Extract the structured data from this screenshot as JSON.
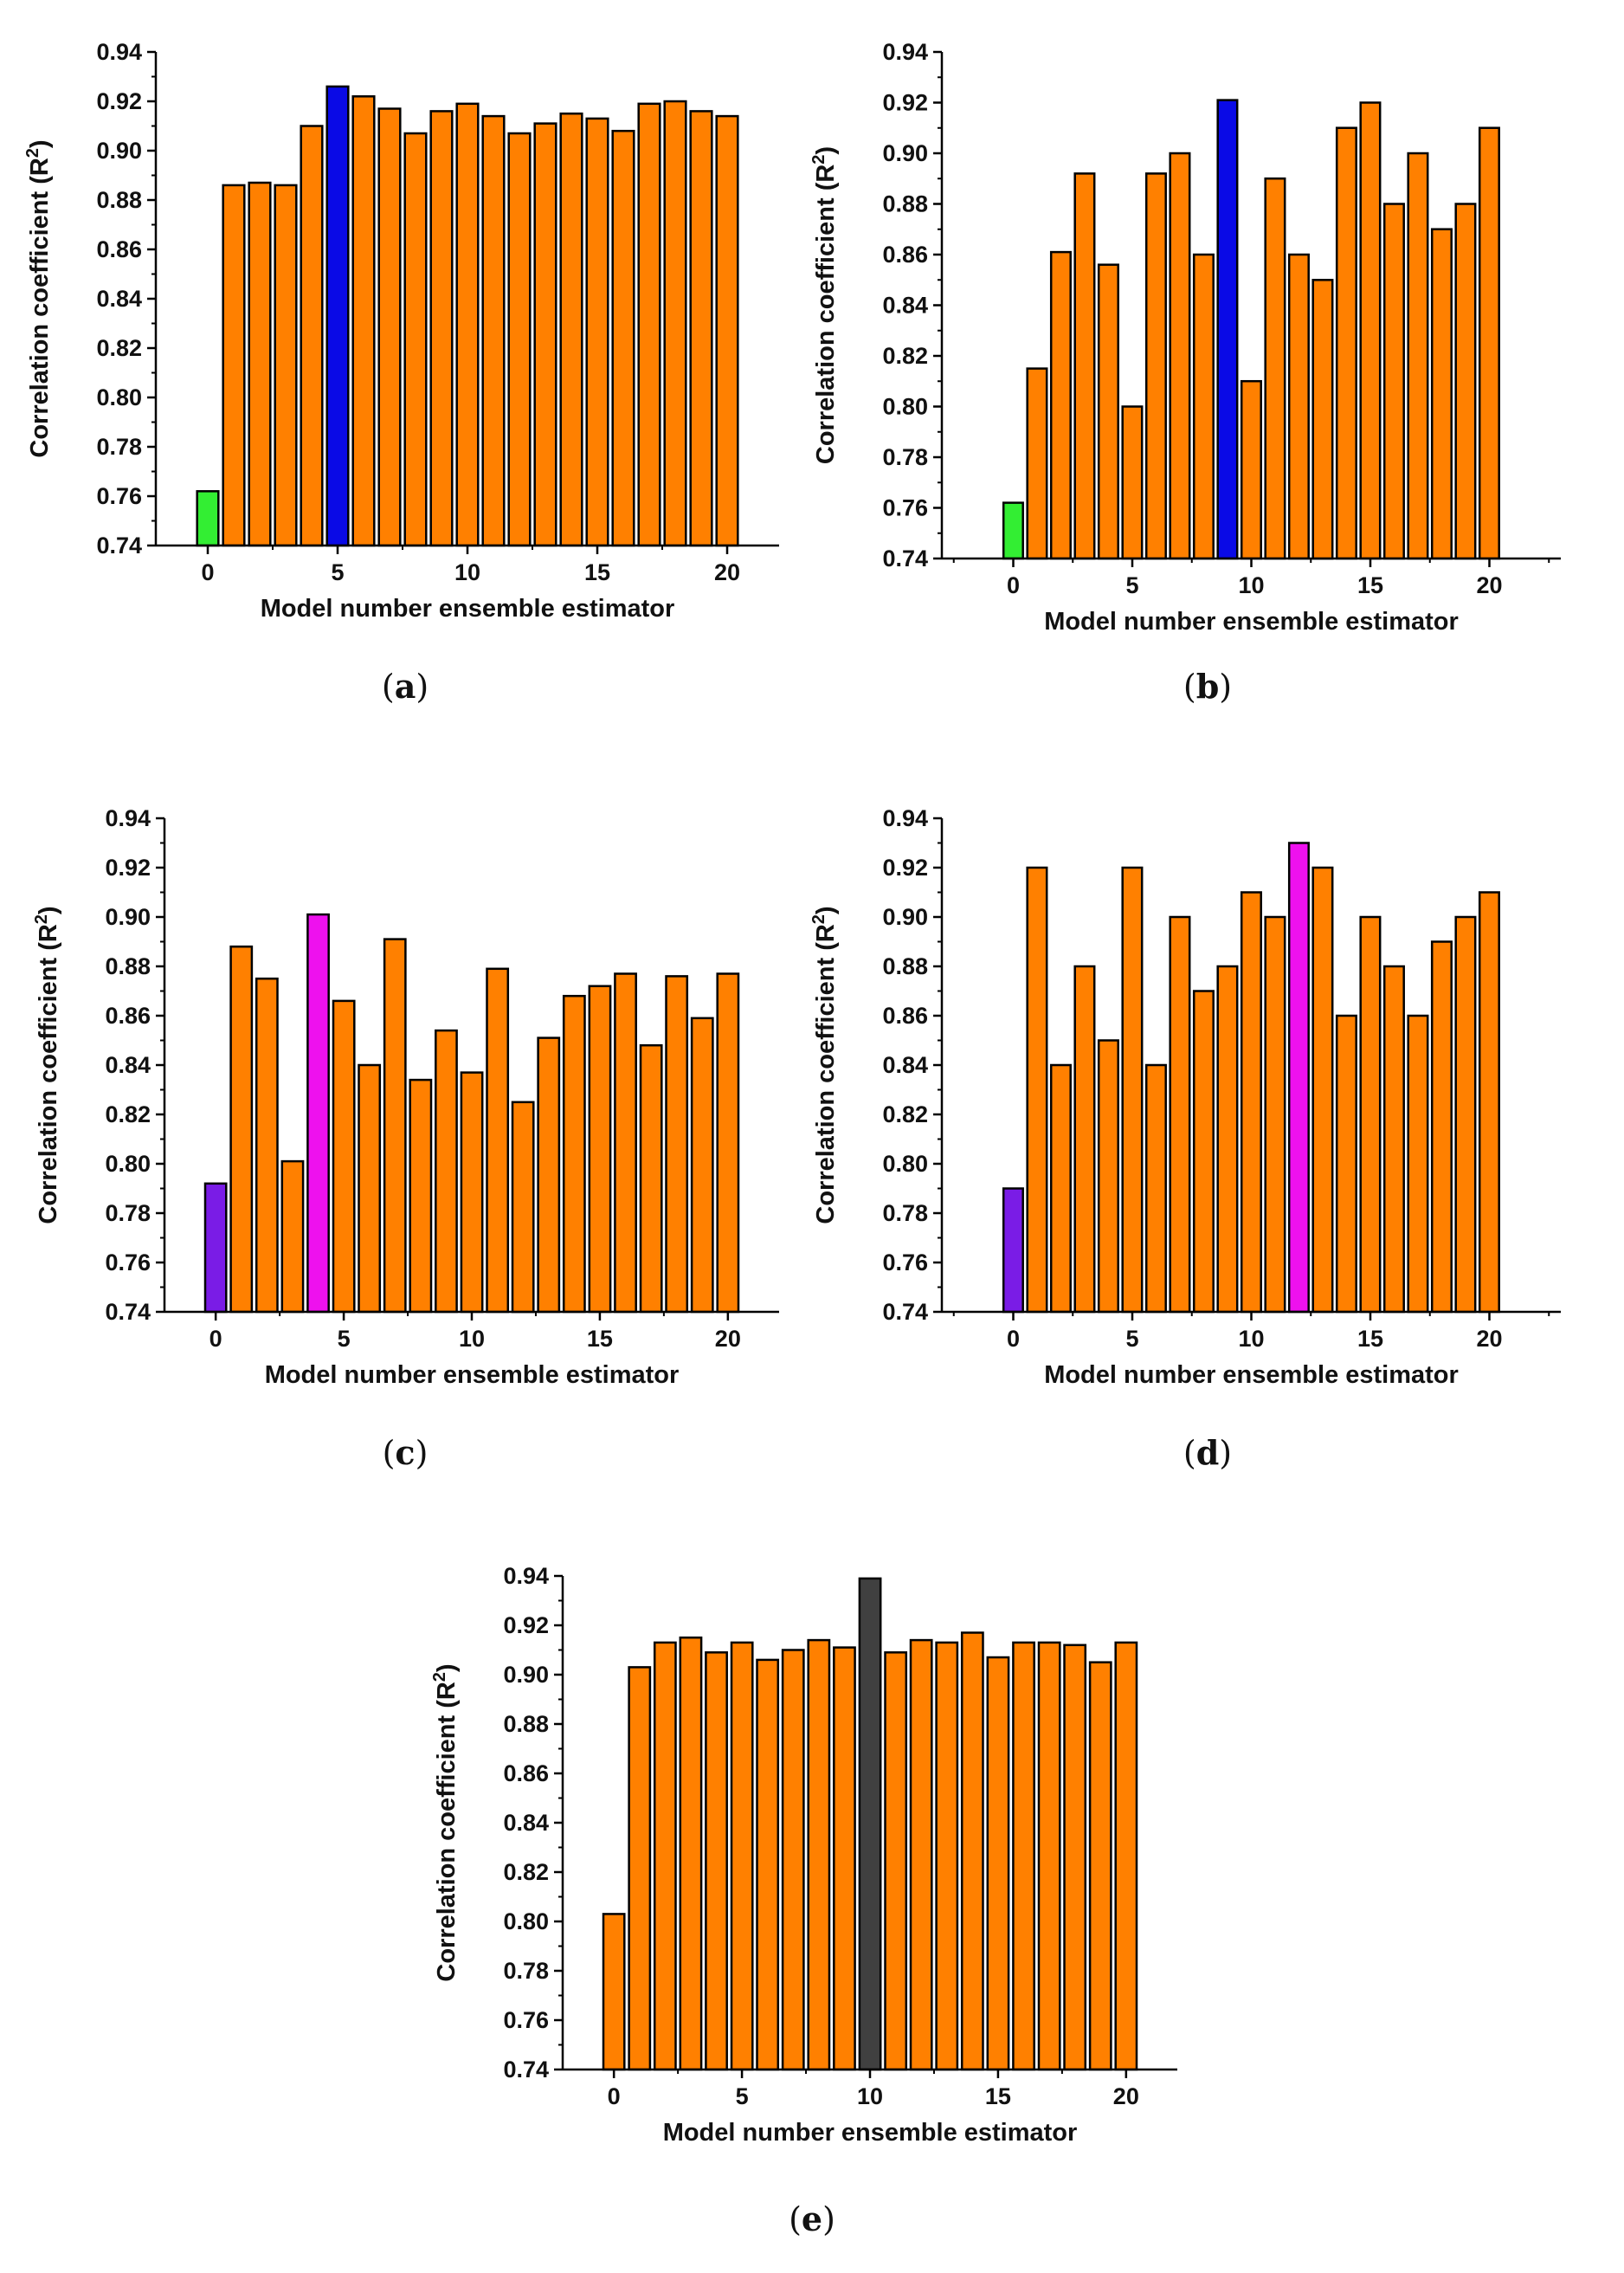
{
  "figure": {
    "captions": [
      "(a)",
      "(b)",
      "(c)",
      "(d)",
      "(e)"
    ],
    "caption_letters": [
      "a",
      "b",
      "c",
      "d",
      "e"
    ]
  },
  "colors": {
    "orange": "#FF8000",
    "green": "#33EE33",
    "blue": "#0A0AE6",
    "purple": "#7A1CE6",
    "magenta": "#EE11EE",
    "dark": "#404040",
    "outline": "#000000"
  },
  "chart_data": [
    {
      "type": "bar",
      "panel": "a",
      "title": "",
      "xlabel": "Model number ensemble estimator",
      "ylabel": "Correlation coefficient (R",
      "ylabel_sup": "2",
      "ylabel_close": ")",
      "xlim": [
        -2,
        22
      ],
      "ylim": [
        0.74,
        0.94
      ],
      "xticks": [
        0,
        5,
        10,
        15,
        20
      ],
      "yticks": [
        "0.74",
        "0.76",
        "0.78",
        "0.80",
        "0.82",
        "0.84",
        "0.86",
        "0.88",
        "0.90",
        "0.92",
        "0.94"
      ],
      "categories": [
        0,
        1,
        2,
        3,
        4,
        5,
        6,
        7,
        8,
        9,
        10,
        11,
        12,
        13,
        14,
        15,
        16,
        17,
        18,
        19,
        20
      ],
      "values": [
        0.762,
        0.886,
        0.887,
        0.886,
        0.91,
        0.926,
        0.922,
        0.917,
        0.907,
        0.916,
        0.919,
        0.914,
        0.907,
        0.911,
        0.915,
        0.913,
        0.908,
        0.919,
        0.92,
        0.916,
        0.914
      ],
      "highlight": {
        "0": "green",
        "5": "blue"
      }
    },
    {
      "type": "bar",
      "panel": "b",
      "title": "",
      "xlabel": "Model number ensemble estimator",
      "ylabel": "Correlation coefficient (R",
      "ylabel_sup": "2",
      "ylabel_close": ")",
      "xlim": [
        -3,
        23
      ],
      "ylim": [
        0.74,
        0.94
      ],
      "xticks": [
        0,
        5,
        10,
        15,
        20
      ],
      "yticks": [
        "0.74",
        "0.76",
        "0.78",
        "0.80",
        "0.82",
        "0.84",
        "0.86",
        "0.88",
        "0.90",
        "0.92",
        "0.94"
      ],
      "categories": [
        0,
        1,
        2,
        3,
        4,
        5,
        6,
        7,
        8,
        9,
        10,
        11,
        12,
        13,
        14,
        15,
        16,
        17,
        18,
        19,
        20
      ],
      "values": [
        0.762,
        0.815,
        0.861,
        0.892,
        0.856,
        0.8,
        0.892,
        0.9,
        0.86,
        0.921,
        0.81,
        0.89,
        0.86,
        0.85,
        0.91,
        0.92,
        0.88,
        0.9,
        0.87,
        0.88,
        0.91
      ],
      "highlight": {
        "0": "green",
        "9": "blue"
      }
    },
    {
      "type": "bar",
      "panel": "c",
      "title": "",
      "xlabel": "Model number ensemble estimator",
      "ylabel": "Correlation coefficient (R",
      "ylabel_sup": "2",
      "ylabel_close": ")",
      "xlim": [
        -2,
        22
      ],
      "ylim": [
        0.74,
        0.94
      ],
      "xticks": [
        0,
        5,
        10,
        15,
        20
      ],
      "yticks": [
        "0.74",
        "0.76",
        "0.78",
        "0.80",
        "0.82",
        "0.84",
        "0.86",
        "0.88",
        "0.90",
        "0.92",
        "0.94"
      ],
      "categories": [
        0,
        1,
        2,
        3,
        4,
        5,
        6,
        7,
        8,
        9,
        10,
        11,
        12,
        13,
        14,
        15,
        16,
        17,
        18,
        19,
        20
      ],
      "values": [
        0.792,
        0.888,
        0.875,
        0.801,
        0.901,
        0.866,
        0.84,
        0.891,
        0.834,
        0.854,
        0.837,
        0.879,
        0.825,
        0.851,
        0.868,
        0.872,
        0.877,
        0.848,
        0.876,
        0.859,
        0.877
      ],
      "highlight": {
        "0": "purple",
        "4": "magenta"
      }
    },
    {
      "type": "bar",
      "panel": "d",
      "title": "",
      "xlabel": "Model number ensemble estimator",
      "ylabel": "Correlation coefficient (R",
      "ylabel_sup": "2",
      "ylabel_close": ")",
      "xlim": [
        -3,
        23
      ],
      "ylim": [
        0.74,
        0.94
      ],
      "xticks": [
        0,
        5,
        10,
        15,
        20
      ],
      "yticks": [
        "0.74",
        "0.76",
        "0.78",
        "0.80",
        "0.82",
        "0.84",
        "0.86",
        "0.88",
        "0.90",
        "0.92",
        "0.94"
      ],
      "categories": [
        0,
        1,
        2,
        3,
        4,
        5,
        6,
        7,
        8,
        9,
        10,
        11,
        12,
        13,
        14,
        15,
        16,
        17,
        18,
        19,
        20
      ],
      "values": [
        0.79,
        0.92,
        0.84,
        0.88,
        0.85,
        0.92,
        0.84,
        0.9,
        0.87,
        0.88,
        0.91,
        0.9,
        0.93,
        0.92,
        0.86,
        0.9,
        0.88,
        0.86,
        0.89,
        0.9,
        0.91
      ],
      "highlight": {
        "0": "purple",
        "12": "magenta"
      }
    },
    {
      "type": "bar",
      "panel": "e",
      "title": "",
      "xlabel": "Model number ensemble estimator",
      "ylabel": "Correlation coefficient (R",
      "ylabel_sup": "2",
      "ylabel_close": ")",
      "xlim": [
        -2,
        22
      ],
      "ylim": [
        0.74,
        0.94
      ],
      "xticks": [
        0,
        5,
        10,
        15,
        20
      ],
      "yticks": [
        "0.74",
        "0.76",
        "0.78",
        "0.80",
        "0.82",
        "0.84",
        "0.86",
        "0.88",
        "0.90",
        "0.92",
        "0.94"
      ],
      "categories": [
        0,
        1,
        2,
        3,
        4,
        5,
        6,
        7,
        8,
        9,
        10,
        11,
        12,
        13,
        14,
        15,
        16,
        17,
        18,
        19,
        20
      ],
      "values": [
        0.803,
        0.903,
        0.913,
        0.915,
        0.909,
        0.913,
        0.906,
        0.91,
        0.914,
        0.911,
        0.939,
        0.909,
        0.914,
        0.913,
        0.917,
        0.907,
        0.913,
        0.913,
        0.912,
        0.905,
        0.913
      ],
      "highlight": {
        "10": "dark"
      }
    }
  ]
}
